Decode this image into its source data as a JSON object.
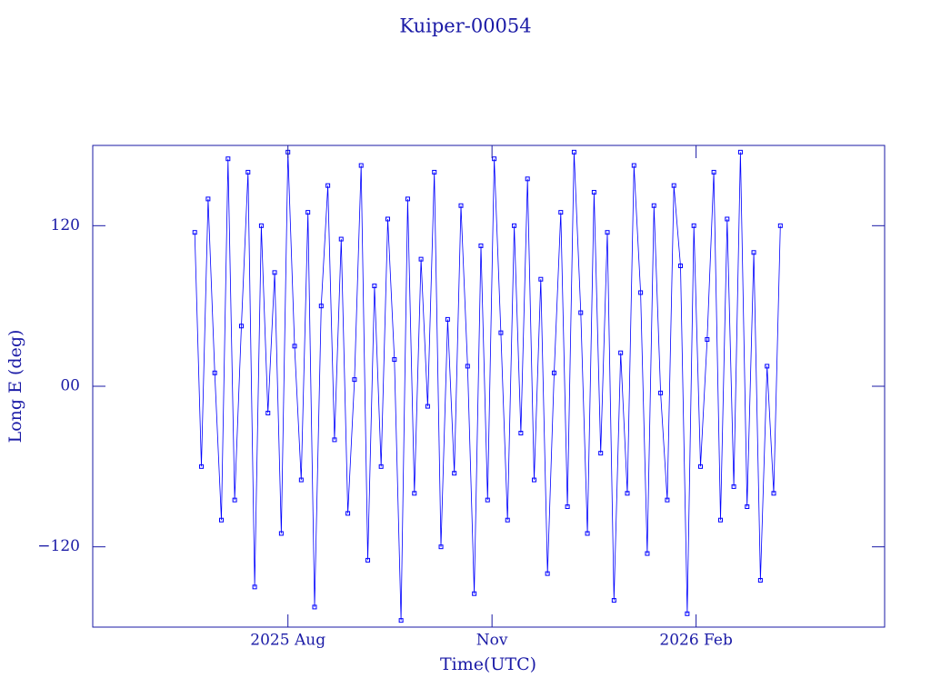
{
  "chart_data": {
    "type": "line",
    "title": "Kuiper-00054",
    "xlabel": "Time(UTC)",
    "ylabel": "Long E (deg)",
    "color": "#0000ff",
    "xlim": [
      "2025-05-05",
      "2026-04-27"
    ],
    "xticks": [
      {
        "value": "2025-08-01",
        "label": "2025 Aug"
      },
      {
        "value": "2025-11-01",
        "label": "Nov"
      },
      {
        "value": "2026-02-01",
        "label": "2026 Feb"
      }
    ],
    "ylim": [
      -180,
      180
    ],
    "yticks": [
      {
        "value": -120,
        "label": "−120"
      },
      {
        "value": 0,
        "label": "00"
      },
      120
    ],
    "x": [
      "2025-06-20",
      "2025-06-23",
      "2025-06-26",
      "2025-06-29",
      "2025-07-02",
      "2025-07-05",
      "2025-07-08",
      "2025-07-11",
      "2025-07-14",
      "2025-07-17",
      "2025-07-20",
      "2025-07-23",
      "2025-07-26",
      "2025-07-29",
      "2025-08-01",
      "2025-08-04",
      "2025-08-07",
      "2025-08-10",
      "2025-08-13",
      "2025-08-16",
      "2025-08-19",
      "2025-08-22",
      "2025-08-25",
      "2025-08-28",
      "2025-08-31",
      "2025-09-03",
      "2025-09-06",
      "2025-09-09",
      "2025-09-12",
      "2025-09-15",
      "2025-09-18",
      "2025-09-21",
      "2025-09-24",
      "2025-09-27",
      "2025-09-30",
      "2025-10-03",
      "2025-10-06",
      "2025-10-09",
      "2025-10-12",
      "2025-10-15",
      "2025-10-18",
      "2025-10-21",
      "2025-10-24",
      "2025-10-27",
      "2025-10-30",
      "2025-11-02",
      "2025-11-05",
      "2025-11-08",
      "2025-11-11",
      "2025-11-14",
      "2025-11-17",
      "2025-11-20",
      "2025-11-23",
      "2025-11-26",
      "2025-11-29",
      "2025-12-02",
      "2025-12-05",
      "2025-12-08",
      "2025-12-11",
      "2025-12-14",
      "2025-12-17",
      "2025-12-20",
      "2025-12-23",
      "2025-12-26",
      "2025-12-29",
      "2026-01-01",
      "2026-01-04",
      "2026-01-07",
      "2026-01-10",
      "2026-01-13",
      "2026-01-16",
      "2026-01-19",
      "2026-01-22",
      "2026-01-25",
      "2026-01-28",
      "2026-01-31",
      "2026-02-03",
      "2026-02-06",
      "2026-02-09",
      "2026-02-12",
      "2026-02-15",
      "2026-02-18",
      "2026-02-21",
      "2026-02-24",
      "2026-02-27",
      "2026-03-02",
      "2026-03-05",
      "2026-03-08",
      "2026-03-11"
    ],
    "values": [
      115,
      -60,
      140,
      10,
      -100,
      170,
      -85,
      45,
      160,
      -150,
      120,
      -20,
      85,
      -110,
      175,
      30,
      -70,
      130,
      -165,
      60,
      150,
      -40,
      110,
      -95,
      5,
      165,
      -130,
      75,
      -60,
      125,
      20,
      -175,
      140,
      -80,
      95,
      -15,
      160,
      -120,
      50,
      -65,
      135,
      15,
      -155,
      105,
      -85,
      170,
      40,
      -100,
      120,
      -35,
      155,
      -70,
      80,
      -140,
      10,
      130,
      -90,
      175,
      55,
      -110,
      145,
      -50,
      115,
      -160,
      25,
      -80,
      165,
      70,
      -125,
      135,
      -5,
      -85,
      150,
      90,
      -170,
      120,
      -60,
      35,
      160,
      -100,
      125,
      -75,
      175,
      -90,
      100,
      -145,
      15,
      -80,
      120
    ]
  }
}
